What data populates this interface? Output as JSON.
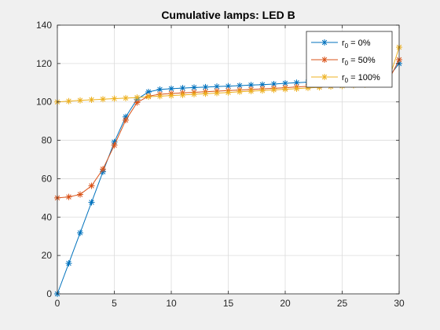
{
  "chart_data": {
    "type": "line",
    "title": "Cumulative lamps: LED B",
    "xlabel": "",
    "ylabel": "",
    "xlim": [
      0,
      30
    ],
    "ylim": [
      0,
      140
    ],
    "xticks": [
      0,
      5,
      10,
      15,
      20,
      25,
      30
    ],
    "yticks": [
      0,
      20,
      40,
      60,
      80,
      100,
      120,
      140
    ],
    "grid": true,
    "legend_position": "top-right",
    "marker": "asterisk",
    "x": [
      0,
      1,
      2,
      3,
      4,
      5,
      6,
      7,
      8,
      9,
      10,
      11,
      12,
      13,
      14,
      15,
      16,
      17,
      18,
      19,
      20,
      21,
      22,
      23,
      24,
      25,
      26,
      27,
      28,
      29,
      30
    ],
    "series": [
      {
        "name_base": "r",
        "name_sub": "0",
        "name_rest": " = 0%",
        "color": "#0072bd",
        "values": [
          0,
          15.9,
          31.8,
          47.7,
          63.6,
          79.1,
          92.2,
          101.4,
          105.2,
          106.5,
          106.9,
          107.2,
          107.5,
          107.7,
          108.0,
          108.2,
          108.5,
          108.8,
          109.0,
          109.3,
          109.7,
          110.0,
          110.3,
          110.6,
          110.9,
          111.2,
          111.5,
          111.8,
          112.1,
          112.4,
          120.0
        ]
      },
      {
        "name_base": "r",
        "name_sub": "0",
        "name_rest": " = 50%",
        "color": "#d95319",
        "values": [
          50,
          50.5,
          51.8,
          56.3,
          65.0,
          77.4,
          90.5,
          99.7,
          103.0,
          104.0,
          104.4,
          104.7,
          105.0,
          105.3,
          105.6,
          105.9,
          106.2,
          106.5,
          106.8,
          107.1,
          107.4,
          107.8,
          108.1,
          108.4,
          108.7,
          109.1,
          109.4,
          109.7,
          110.0,
          110.4,
          122.0
        ]
      },
      {
        "name_base": "r",
        "name_sub": "0",
        "name_rest": " = 100%",
        "color": "#edb120",
        "values": [
          100,
          100.4,
          100.8,
          101.1,
          101.4,
          101.7,
          102.0,
          102.3,
          102.7,
          103.0,
          103.3,
          103.6,
          104.0,
          104.3,
          104.6,
          104.9,
          105.3,
          105.6,
          105.9,
          106.3,
          106.6,
          106.9,
          107.3,
          107.6,
          108.0,
          108.3,
          108.7,
          109.0,
          109.4,
          109.8,
          128.5
        ]
      }
    ]
  }
}
